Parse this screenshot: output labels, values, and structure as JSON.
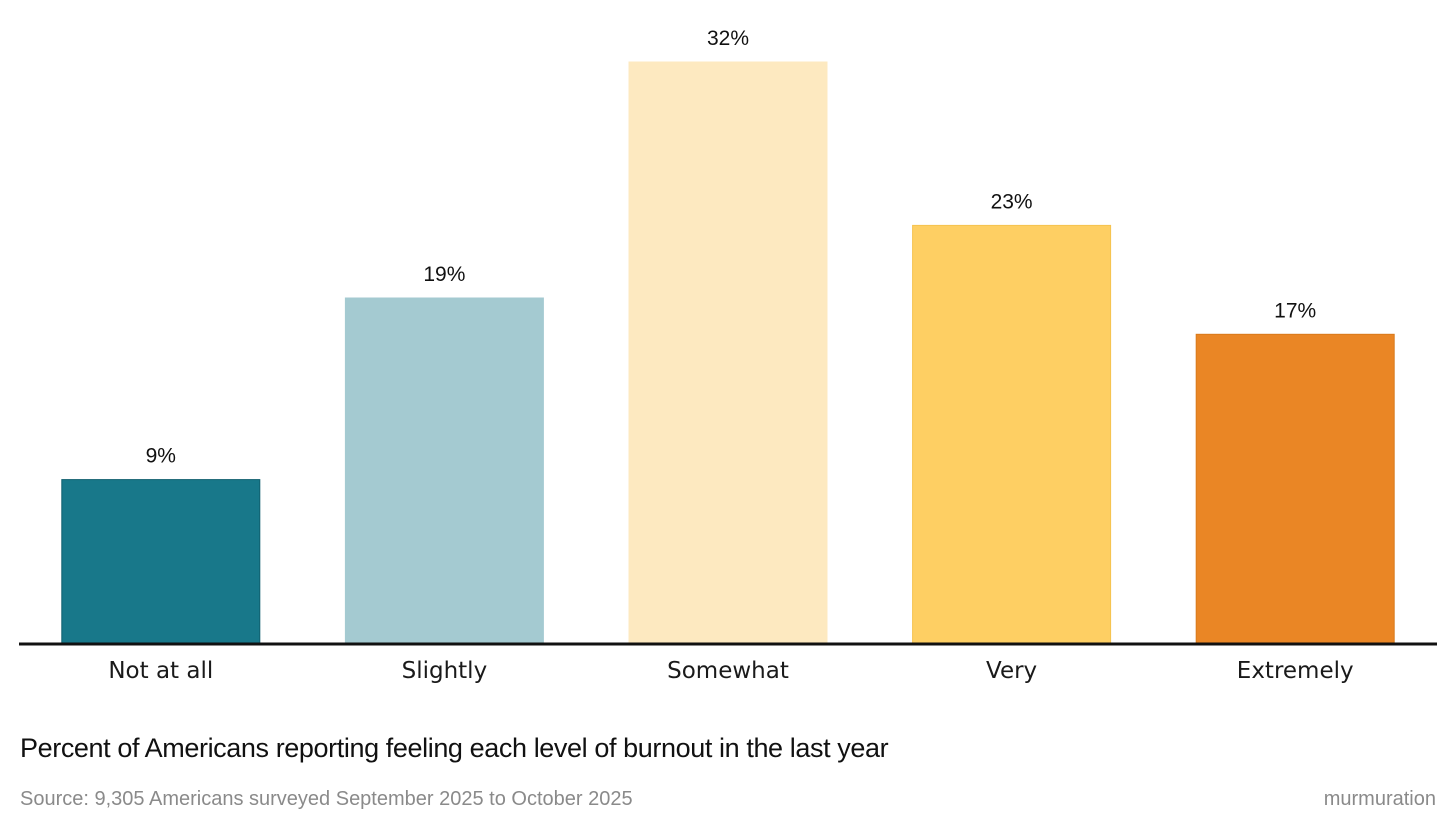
{
  "chart_data": {
    "type": "bar",
    "categories": [
      "Not at all",
      "Slightly",
      "Somewhat",
      "Very",
      "Extremely"
    ],
    "values": [
      9,
      19,
      32,
      23,
      17
    ],
    "value_labels": [
      "9%",
      "19%",
      "32%",
      "23%",
      "17%"
    ],
    "colors": [
      "#18788A",
      "#A4CAD1",
      "#FDE9C0",
      "#FECF63",
      "#EA8625"
    ],
    "border_colors": [
      "#0F5F6E",
      "#A4CAD1",
      "#FDE9C0",
      "#F5C24F",
      "#D97A1C"
    ],
    "axis_color": "#111111",
    "ylim": [
      0,
      32
    ],
    "grid": false,
    "title": "Percent of Americans reporting feeling each level of burnout in the last year",
    "source": "Source: 9,305 Americans surveyed September 2025 to October 2025",
    "brand": "murmuration"
  }
}
